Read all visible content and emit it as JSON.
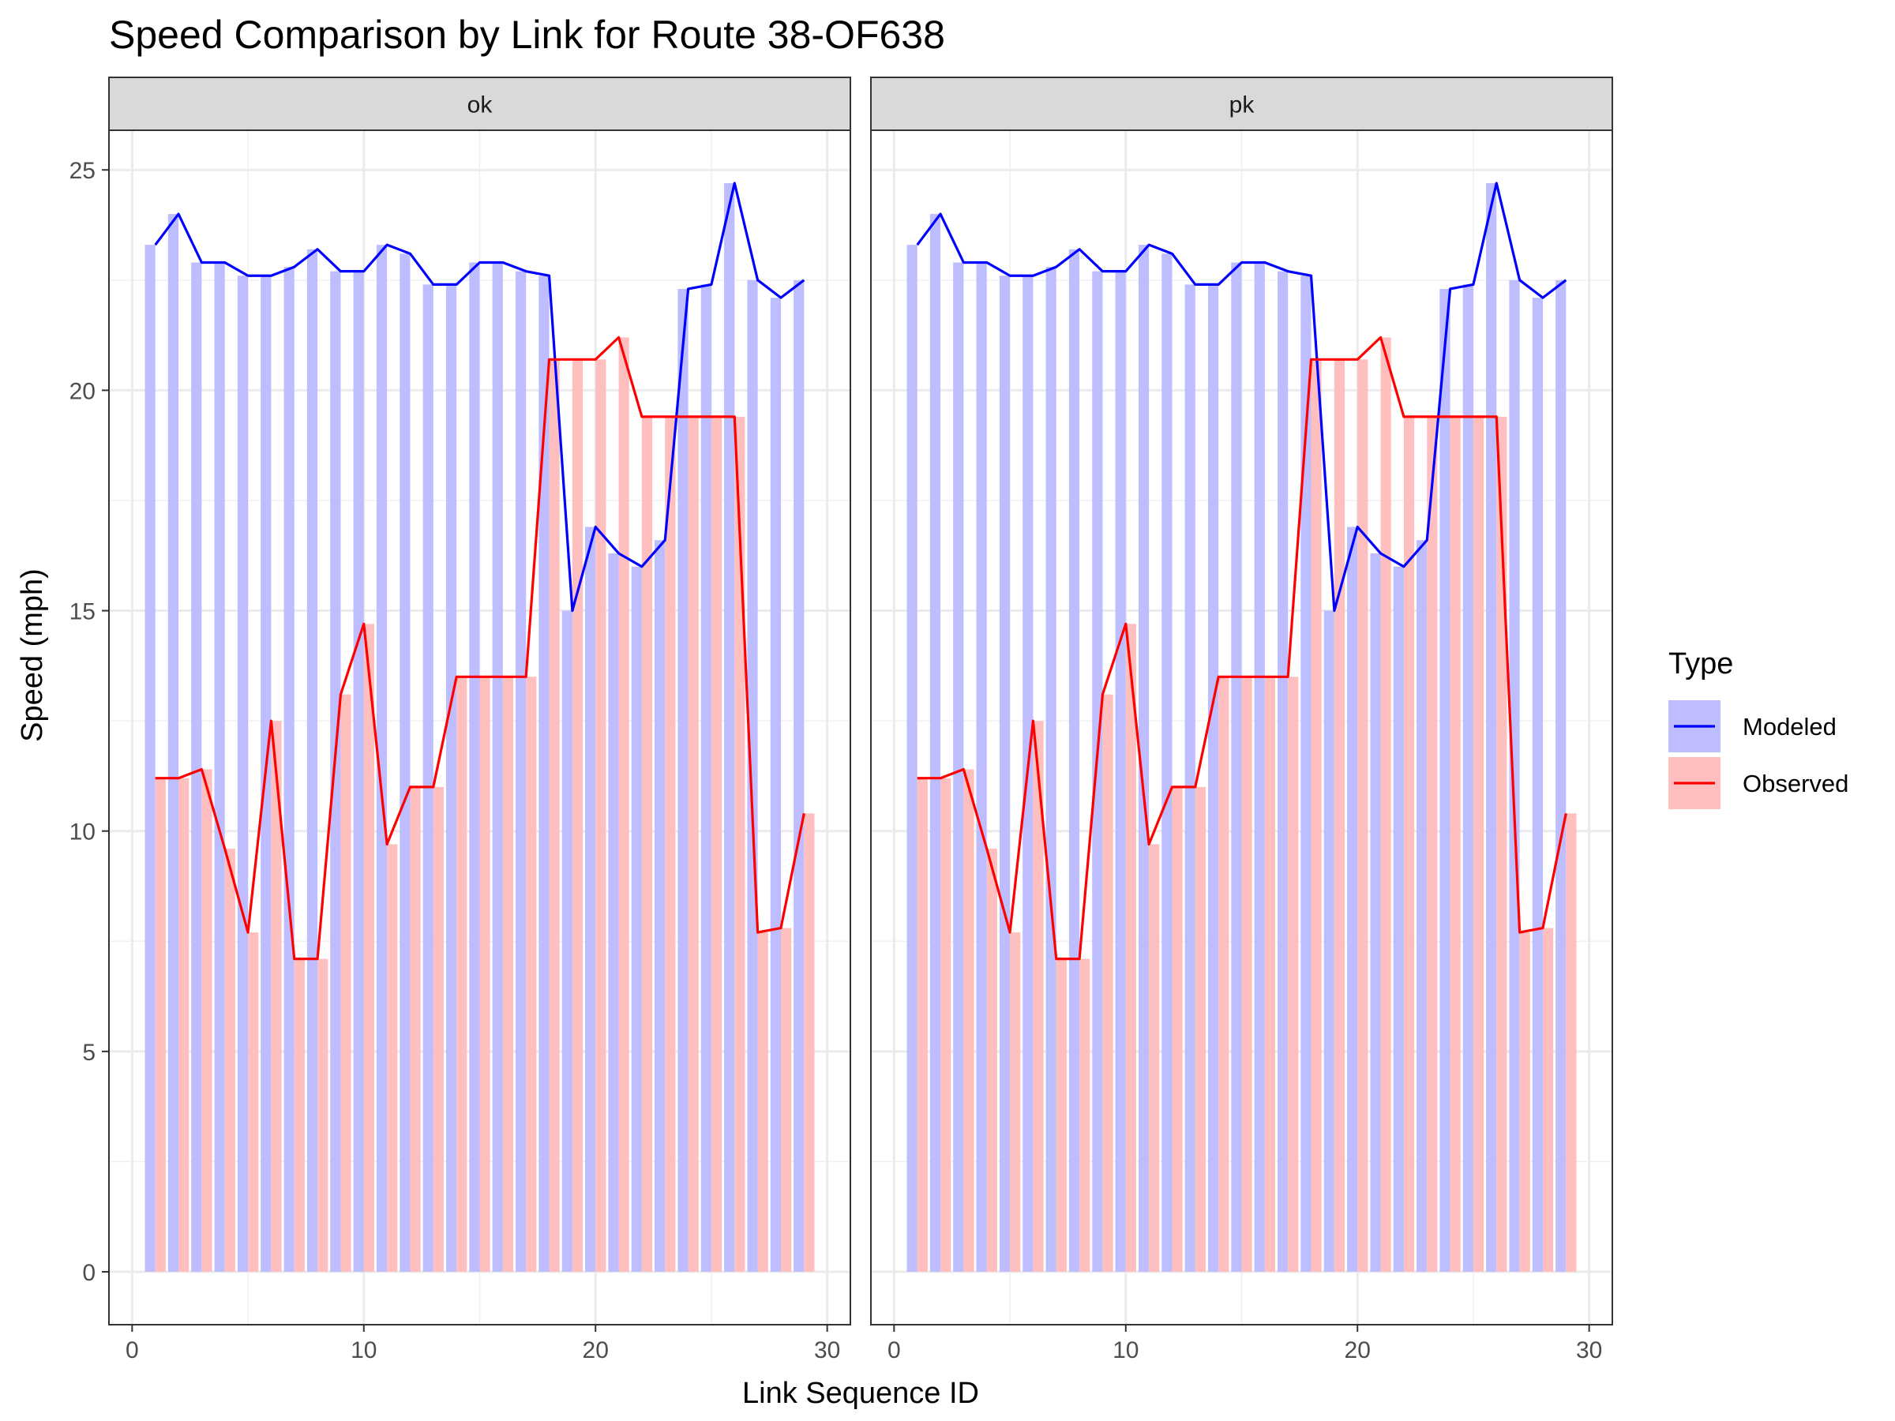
{
  "chart_data": {
    "type": "bar",
    "title": "Speed Comparison by Link for Route 38-OF638",
    "xlabel": "Link Sequence ID",
    "ylabel": "Speed (mph)",
    "xlim": [
      -1,
      31
    ],
    "ylim": [
      -1.2,
      25.9
    ],
    "x_ticks": [
      0,
      10,
      20,
      30
    ],
    "y_ticks": [
      0,
      5,
      10,
      15,
      20,
      25
    ],
    "grid": true,
    "legend": {
      "title": "Type",
      "position": "right",
      "entries": [
        {
          "label": "Modeled",
          "fill": "#BDBDFF",
          "line": "#0000FF"
        },
        {
          "label": "Observed",
          "fill": "#FFBFBF",
          "line": "#FF0000"
        }
      ]
    },
    "x": [
      1,
      2,
      3,
      4,
      5,
      6,
      7,
      8,
      9,
      10,
      11,
      12,
      13,
      14,
      15,
      16,
      17,
      18,
      19,
      20,
      21,
      22,
      23,
      24,
      25,
      26,
      27,
      28,
      29
    ],
    "panels": [
      {
        "label": "ok",
        "series": [
          {
            "name": "Modeled",
            "values": [
              23.3,
              24.0,
              22.9,
              22.9,
              22.6,
              22.6,
              22.8,
              23.2,
              22.7,
              22.7,
              23.3,
              23.1,
              22.4,
              22.4,
              22.9,
              22.9,
              22.7,
              22.6,
              15.0,
              16.9,
              16.3,
              16.0,
              16.6,
              22.3,
              22.4,
              24.7,
              22.5,
              22.1,
              22.5
            ]
          },
          {
            "name": "Observed",
            "values": [
              11.2,
              11.2,
              11.4,
              9.6,
              7.7,
              12.5,
              7.1,
              7.1,
              13.1,
              14.7,
              9.7,
              11.0,
              11.0,
              13.5,
              13.5,
              13.5,
              13.5,
              20.7,
              20.7,
              20.7,
              21.2,
              19.4,
              19.4,
              19.4,
              19.4,
              19.4,
              7.7,
              7.8,
              10.4
            ]
          }
        ]
      },
      {
        "label": "pk",
        "series": [
          {
            "name": "Modeled",
            "values": [
              23.3,
              24.0,
              22.9,
              22.9,
              22.6,
              22.6,
              22.8,
              23.2,
              22.7,
              22.7,
              23.3,
              23.1,
              22.4,
              22.4,
              22.9,
              22.9,
              22.7,
              22.6,
              15.0,
              16.9,
              16.3,
              16.0,
              16.6,
              22.3,
              22.4,
              24.7,
              22.5,
              22.1,
              22.5
            ]
          },
          {
            "name": "Observed",
            "values": [
              11.2,
              11.2,
              11.4,
              9.6,
              7.7,
              12.5,
              7.1,
              7.1,
              13.1,
              14.7,
              9.7,
              11.0,
              11.0,
              13.5,
              13.5,
              13.5,
              13.5,
              20.7,
              20.7,
              20.7,
              21.2,
              19.4,
              19.4,
              19.4,
              19.4,
              19.4,
              7.7,
              7.8,
              10.4
            ]
          }
        ]
      }
    ]
  }
}
